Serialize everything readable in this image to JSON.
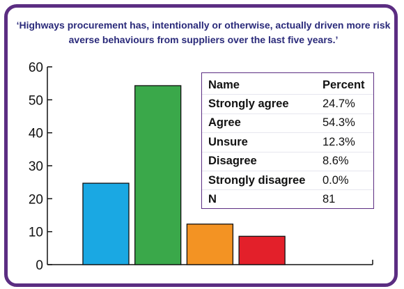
{
  "title": "‘Highways procurement has, intentionally or otherwise, actually driven more risk averse behaviours from suppliers over the last five years.’",
  "table": {
    "headers": [
      "Name",
      "Percent"
    ],
    "rows": [
      {
        "name": "Strongly agree",
        "percent": "24.7%"
      },
      {
        "name": "Agree",
        "percent": "54.3%"
      },
      {
        "name": "Unsure",
        "percent": "12.3%"
      },
      {
        "name": "Disagree",
        "percent": "8.6%"
      },
      {
        "name": "Strongly disagree",
        "percent": "0.0%"
      },
      {
        "name": "N",
        "percent": "81"
      }
    ]
  },
  "chart_data": {
    "type": "bar",
    "categories": [
      "Strongly agree",
      "Agree",
      "Unsure",
      "Disagree",
      "Strongly disagree"
    ],
    "values": [
      24.7,
      54.3,
      12.3,
      8.6,
      0.0
    ],
    "colors": [
      "#1aa8e3",
      "#3aa84a",
      "#f39323",
      "#e3202a",
      "#888888"
    ],
    "ylim": [
      0,
      60
    ],
    "yticks": [
      0,
      10,
      20,
      30,
      40,
      50,
      60
    ],
    "xlabel": "",
    "ylabel": "",
    "grid": false,
    "legend": "top-right table"
  },
  "colors": {
    "frame": "#5b2d82",
    "title": "#2a2a7a"
  }
}
